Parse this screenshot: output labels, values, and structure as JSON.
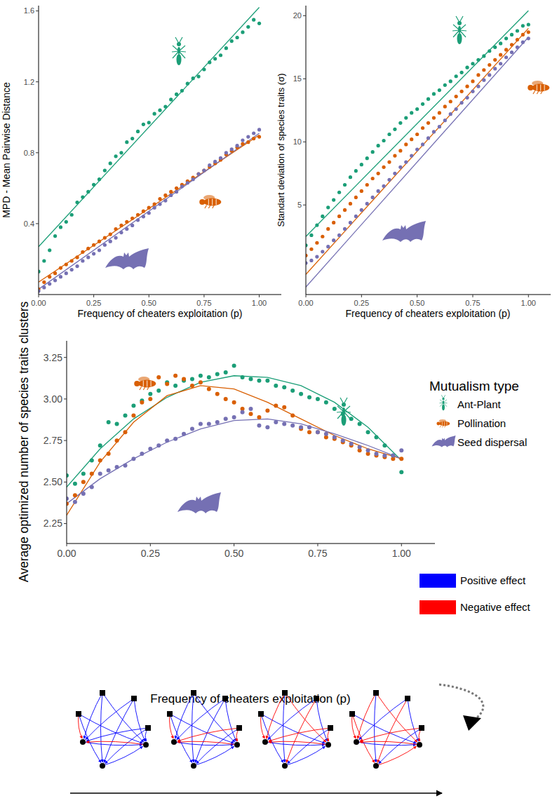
{
  "chart_data": [
    {
      "type": "scatter",
      "x_label": "Frequency of cheaters exploitation (p)",
      "y_label": "MPD - Mean Pairwise Distance",
      "xlim": [
        0,
        1.1
      ],
      "xticks": [
        {
          "value": 0,
          "label": "0.00"
        },
        {
          "value": 0.25,
          "label": "0.25"
        },
        {
          "value": 0.5,
          "label": "0.50"
        },
        {
          "value": 0.75,
          "label": "0.75"
        },
        {
          "value": 1,
          "label": "1.00"
        }
      ],
      "ylim": [
        0,
        1.63
      ],
      "yticks": [
        0.4,
        0.8,
        1.2,
        1.6
      ],
      "grid": false,
      "x": [
        0,
        0.025,
        0.05,
        0.075,
        0.1,
        0.125,
        0.15,
        0.175,
        0.2,
        0.225,
        0.25,
        0.275,
        0.3,
        0.325,
        0.35,
        0.375,
        0.4,
        0.425,
        0.45,
        0.475,
        0.5,
        0.525,
        0.55,
        0.575,
        0.6,
        0.625,
        0.65,
        0.675,
        0.7,
        0.725,
        0.75,
        0.775,
        0.8,
        0.825,
        0.85,
        0.875,
        0.9,
        0.925,
        0.95,
        0.975,
        1
      ],
      "series": [
        {
          "color": "#1b9e77",
          "marker": "circle",
          "values": [
            0.13,
            0.19,
            0.25,
            0.33,
            0.38,
            0.41,
            0.45,
            0.52,
            0.55,
            0.58,
            0.62,
            0.65,
            0.7,
            0.74,
            0.78,
            0.8,
            0.86,
            0.88,
            0.92,
            0.96,
            0.97,
            1.02,
            1.04,
            1.06,
            1.1,
            1.13,
            1.15,
            1.19,
            1.22,
            1.23,
            1.27,
            1.31,
            1.33,
            1.35,
            1.39,
            1.43,
            1.45,
            1.48,
            1.51,
            1.55,
            1.53
          ]
        },
        {
          "color": "#d95f02",
          "marker": "circle",
          "values": [
            0.03,
            0.07,
            0.1,
            0.12,
            0.15,
            0.17,
            0.19,
            0.21,
            0.24,
            0.26,
            0.28,
            0.3,
            0.32,
            0.34,
            0.37,
            0.39,
            0.41,
            0.43,
            0.45,
            0.47,
            0.49,
            0.51,
            0.54,
            0.56,
            0.58,
            0.6,
            0.62,
            0.64,
            0.66,
            0.68,
            0.7,
            0.72,
            0.74,
            0.76,
            0.79,
            0.81,
            0.83,
            0.85,
            0.86,
            0.88,
            0.89
          ]
        },
        {
          "color": "#7570b3",
          "marker": "circle",
          "values": [
            0.02,
            0.04,
            0.06,
            0.08,
            0.1,
            0.12,
            0.14,
            0.16,
            0.19,
            0.21,
            0.23,
            0.25,
            0.28,
            0.3,
            0.32,
            0.35,
            0.37,
            0.39,
            0.42,
            0.44,
            0.46,
            0.49,
            0.51,
            0.53,
            0.56,
            0.58,
            0.61,
            0.63,
            0.65,
            0.68,
            0.7,
            0.73,
            0.75,
            0.77,
            0.8,
            0.82,
            0.84,
            0.87,
            0.89,
            0.91,
            0.93
          ]
        },
        {
          "type": "line",
          "color": "#1b9e77",
          "line_style": "solid",
          "x": [
            0,
            1
          ],
          "values": [
            0.27,
            1.62
          ]
        },
        {
          "type": "line",
          "color": "#d95f02",
          "line_style": "solid",
          "x": [
            0,
            1
          ],
          "values": [
            0.07,
            0.9
          ]
        },
        {
          "type": "line",
          "color": "#7570b3",
          "line_style": "solid",
          "x": [
            0,
            1
          ],
          "values": [
            0.03,
            0.91
          ]
        }
      ]
    },
    {
      "type": "scatter",
      "x_label": "Frequency of cheaters exploitation (p)",
      "y_label": "Standart deviation of species traits (σ)",
      "xlim": [
        0,
        1.1
      ],
      "xticks": [
        {
          "value": 0,
          "label": "0.00"
        },
        {
          "value": 0.25,
          "label": "0.25"
        },
        {
          "value": 0.5,
          "label": "0.50"
        },
        {
          "value": 0.75,
          "label": "0.75"
        },
        {
          "value": 1,
          "label": "1.00"
        }
      ],
      "ylim": [
        -2.1,
        20.8
      ],
      "yticks": [
        5,
        10,
        15,
        20
      ],
      "grid": false,
      "x": [
        0,
        0.025,
        0.05,
        0.075,
        0.1,
        0.125,
        0.15,
        0.175,
        0.2,
        0.225,
        0.25,
        0.275,
        0.3,
        0.325,
        0.35,
        0.375,
        0.4,
        0.425,
        0.45,
        0.475,
        0.5,
        0.525,
        0.55,
        0.575,
        0.6,
        0.625,
        0.65,
        0.675,
        0.7,
        0.725,
        0.75,
        0.775,
        0.8,
        0.825,
        0.85,
        0.875,
        0.9,
        0.925,
        0.95,
        0.975,
        1
      ],
      "series": [
        {
          "color": "#1b9e77",
          "marker": "circle",
          "values": [
            1.8,
            2.6,
            3.4,
            4.1,
            4.8,
            5.4,
            6.0,
            6.6,
            7.2,
            7.7,
            8.2,
            8.7,
            9.2,
            9.7,
            10.1,
            10.6,
            11.0,
            11.5,
            11.9,
            12.3,
            12.6,
            13.0,
            13.4,
            13.8,
            14.1,
            14.5,
            14.8,
            15.2,
            15.5,
            15.9,
            16.2,
            16.5,
            16.8,
            17.2,
            17.5,
            17.8,
            18.2,
            18.5,
            18.8,
            19.2,
            19.3
          ]
        },
        {
          "color": "#d95f02",
          "marker": "circle",
          "values": [
            1.0,
            1.5,
            2.0,
            2.5,
            3.1,
            3.6,
            4.1,
            4.6,
            5.1,
            5.6,
            6.1,
            6.6,
            7.1,
            7.5,
            8.0,
            8.4,
            8.9,
            9.3,
            9.8,
            10.2,
            10.6,
            11.1,
            11.5,
            11.9,
            12.3,
            12.8,
            13.2,
            13.6,
            14.0,
            14.4,
            14.8,
            15.3,
            15.7,
            16.1,
            16.5,
            16.9,
            17.3,
            17.7,
            18.1,
            18.5,
            18.7
          ]
        },
        {
          "color": "#7570b3",
          "marker": "circle",
          "values": [
            0.4,
            0.6,
            0.9,
            1.3,
            1.7,
            2.2,
            2.6,
            3.1,
            3.6,
            4.1,
            4.6,
            5.1,
            5.6,
            6.1,
            6.5,
            7.0,
            7.5,
            8.0,
            8.4,
            8.9,
            9.4,
            9.8,
            10.3,
            10.8,
            11.2,
            11.7,
            12.2,
            12.6,
            13.1,
            13.5,
            14.0,
            14.4,
            14.9,
            15.3,
            15.8,
            16.2,
            16.7,
            17.1,
            17.5,
            17.9,
            18.2
          ]
        },
        {
          "type": "line",
          "color": "#1b9e77",
          "line_style": "solid",
          "x": [
            0,
            1
          ],
          "values": [
            2.5,
            20.4
          ]
        },
        {
          "type": "line",
          "color": "#d95f02",
          "line_style": "solid",
          "x": [
            0,
            1
          ],
          "values": [
            -0.5,
            19.0
          ]
        },
        {
          "type": "line",
          "color": "#7570b3",
          "line_style": "solid",
          "x": [
            0,
            1
          ],
          "values": [
            -1.5,
            18.3
          ]
        }
      ]
    },
    {
      "type": "scatter",
      "x_label": "Frequency of cheaters exploitation (p)",
      "y_label": "Average optimized number of species traits clusters",
      "xlim": [
        0,
        1.1
      ],
      "xticks": [
        {
          "value": 0,
          "label": "0.00"
        },
        {
          "value": 0.25,
          "label": "0.25"
        },
        {
          "value": 0.5,
          "label": "0.50"
        },
        {
          "value": 0.75,
          "label": "0.75"
        },
        {
          "value": 1,
          "label": "1.00"
        }
      ],
      "ylim": [
        2.13,
        3.35
      ],
      "yticks": [
        2.25,
        {
          "value": 2.5,
          "label": "2.50"
        },
        2.75,
        {
          "value": 3,
          "label": "3.00"
        },
        3.25
      ],
      "grid": false,
      "legend": "right",
      "legend_title": "Mutualism type",
      "x": [
        0,
        0.025,
        0.05,
        0.075,
        0.1,
        0.125,
        0.15,
        0.175,
        0.2,
        0.225,
        0.25,
        0.275,
        0.3,
        0.325,
        0.35,
        0.375,
        0.4,
        0.425,
        0.45,
        0.475,
        0.5,
        0.525,
        0.55,
        0.575,
        0.6,
        0.625,
        0.65,
        0.675,
        0.7,
        0.725,
        0.75,
        0.775,
        0.8,
        0.825,
        0.85,
        0.875,
        0.9,
        0.925,
        0.95,
        0.975,
        1
      ],
      "series": [
        {
          "name": "Ant-Plant",
          "color": "#1b9e77",
          "marker": "circle",
          "values": [
            2.54,
            2.49,
            2.55,
            2.63,
            2.72,
            2.86,
            2.85,
            2.9,
            2.96,
            2.99,
            3.03,
            3.05,
            3.1,
            3.08,
            3.11,
            3.12,
            3.14,
            3.13,
            3.15,
            3.16,
            3.2,
            3.13,
            3.12,
            3.11,
            3.11,
            3.08,
            3.07,
            3.05,
            3.03,
            3.01,
            3.0,
            2.98,
            2.94,
            2.91,
            2.88,
            2.85,
            2.8,
            2.77,
            2.72,
            2.66,
            2.56
          ]
        },
        {
          "name": "Pollination",
          "color": "#d95f02",
          "marker": "circle",
          "values": [
            2.37,
            2.42,
            2.5,
            2.55,
            2.63,
            2.67,
            2.75,
            2.8,
            2.9,
            2.98,
            3.0,
            3.13,
            3.09,
            3.14,
            3.12,
            3.08,
            3.1,
            3.06,
            3.03,
            3.0,
            2.98,
            2.94,
            2.91,
            2.89,
            2.93,
            2.96,
            2.95,
            2.9,
            2.82,
            2.8,
            2.8,
            2.77,
            2.76,
            2.74,
            2.72,
            2.69,
            2.67,
            2.66,
            2.65,
            2.64,
            2.64
          ]
        },
        {
          "name": "Seed dispersal",
          "color": "#7570b3",
          "marker": "circle",
          "values": [
            2.4,
            2.38,
            2.43,
            2.47,
            2.55,
            2.57,
            2.59,
            2.6,
            2.64,
            2.67,
            2.7,
            2.72,
            2.75,
            2.76,
            2.79,
            2.82,
            2.85,
            2.85,
            2.86,
            2.88,
            2.89,
            2.92,
            2.94,
            2.84,
            2.83,
            2.86,
            2.85,
            2.84,
            2.83,
            2.83,
            2.8,
            2.79,
            2.77,
            2.75,
            2.73,
            2.71,
            2.69,
            2.67,
            2.66,
            2.66,
            2.69
          ]
        },
        {
          "type": "line",
          "color": "#1b9e77",
          "line_style": "solid",
          "x": [
            0,
            0.1,
            0.2,
            0.3,
            0.4,
            0.5,
            0.6,
            0.7,
            0.8,
            0.9,
            1
          ],
          "values": [
            2.47,
            2.7,
            2.88,
            3.01,
            3.1,
            3.14,
            3.13,
            3.08,
            2.98,
            2.83,
            2.63
          ]
        },
        {
          "type": "line",
          "color": "#d95f02",
          "line_style": "solid",
          "x": [
            0,
            0.1,
            0.2,
            0.3,
            0.4,
            0.5,
            0.6,
            0.7,
            0.8,
            0.9,
            1
          ],
          "values": [
            2.3,
            2.62,
            2.86,
            3.02,
            3.08,
            3.06,
            2.98,
            2.88,
            2.78,
            2.7,
            2.64
          ]
        },
        {
          "type": "line",
          "color": "#7570b3",
          "line_style": "solid",
          "x": [
            0,
            0.1,
            0.2,
            0.3,
            0.4,
            0.5,
            0.6,
            0.7,
            0.8,
            0.9,
            1
          ],
          "values": [
            2.37,
            2.52,
            2.64,
            2.74,
            2.82,
            2.87,
            2.88,
            2.85,
            2.79,
            2.72,
            2.64
          ]
        }
      ]
    }
  ],
  "effect_legend": [
    {
      "label": "Positive effect",
      "color": "#0000ff"
    },
    {
      "label": "Negative effect",
      "color": "#ff0000"
    }
  ]
}
